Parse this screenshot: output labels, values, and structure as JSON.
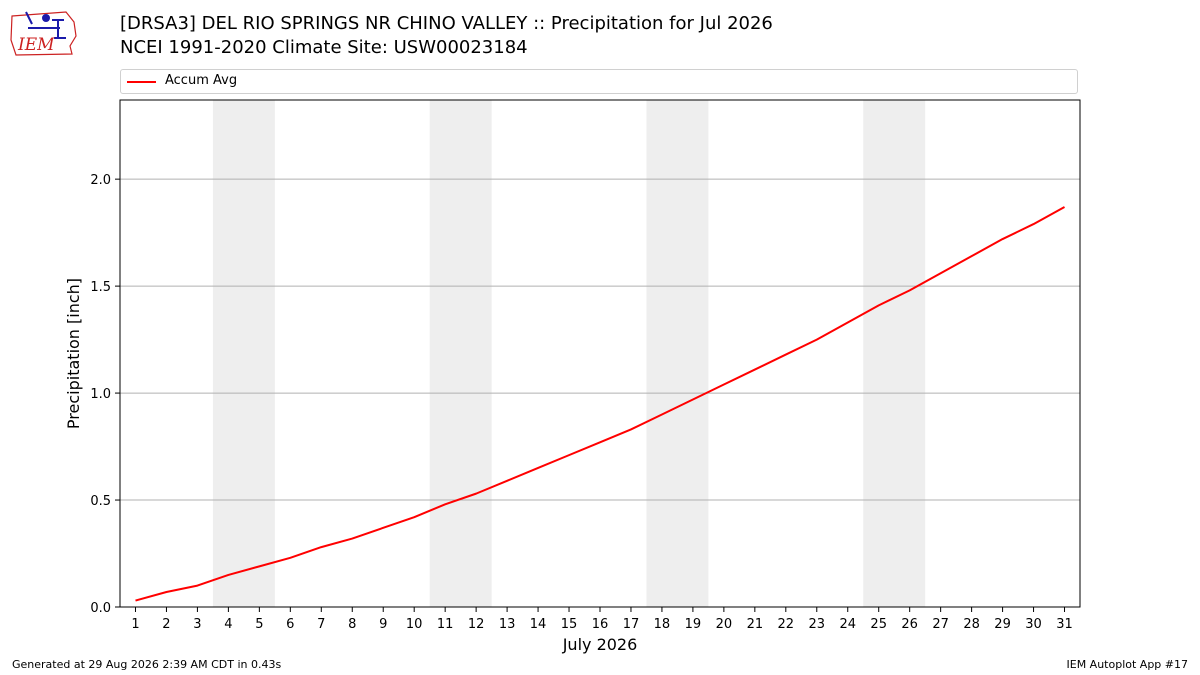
{
  "title": "[DRSA3] DEL RIO SPRINGS NR CHINO VALLEY :: Precipitation for Jul 2026",
  "subtitle": "NCEI 1991-2020 Climate Site: USW00023184",
  "logo_text": "IEM",
  "footer": {
    "left": "Generated at 29 Aug 2026 2:39 AM CDT in 0.43s",
    "right": "IEM Autoplot App #17"
  },
  "colors": {
    "line": "#ff0000",
    "weekend_band": "#eeeeee",
    "grid": "#b0b0b0",
    "logo_red": "#cc2222",
    "logo_blue": "#1a1aaa"
  },
  "chart_data": {
    "type": "line",
    "title": "[DRSA3] DEL RIO SPRINGS NR CHINO VALLEY :: Precipitation for Jul 2026",
    "subtitle": "NCEI 1991-2020 Climate Site: USW00023184",
    "xlabel": "July 2026",
    "ylabel": "Precipitation [inch]",
    "xlim": [
      0.5,
      31.5
    ],
    "ylim": [
      0,
      2.37
    ],
    "x_ticks": [
      1,
      2,
      3,
      4,
      5,
      6,
      7,
      8,
      9,
      10,
      11,
      12,
      13,
      14,
      15,
      16,
      17,
      18,
      19,
      20,
      21,
      22,
      23,
      24,
      25,
      26,
      27,
      28,
      29,
      30,
      31
    ],
    "y_ticks": [
      "0.0",
      "0.5",
      "1.0",
      "1.5",
      "2.0"
    ],
    "y_tick_values": [
      0,
      0.5,
      1.0,
      1.5,
      2.0
    ],
    "grid": "horizontal",
    "legend_position": "top",
    "weekend_bands": [
      [
        3.5,
        5.5
      ],
      [
        10.5,
        12.5
      ],
      [
        17.5,
        19.5
      ],
      [
        24.5,
        26.5
      ]
    ],
    "x": [
      1,
      2,
      3,
      4,
      5,
      6,
      7,
      8,
      9,
      10,
      11,
      12,
      13,
      14,
      15,
      16,
      17,
      18,
      19,
      20,
      21,
      22,
      23,
      24,
      25,
      26,
      27,
      28,
      29,
      30,
      31
    ],
    "series": [
      {
        "name": "Accum Avg",
        "color": "#ff0000",
        "values": [
          0.03,
          0.07,
          0.1,
          0.15,
          0.19,
          0.23,
          0.28,
          0.32,
          0.37,
          0.42,
          0.48,
          0.53,
          0.59,
          0.65,
          0.71,
          0.77,
          0.83,
          0.9,
          0.97,
          1.04,
          1.11,
          1.18,
          1.25,
          1.33,
          1.41,
          1.48,
          1.56,
          1.64,
          1.72,
          1.79,
          1.87
        ]
      }
    ]
  }
}
